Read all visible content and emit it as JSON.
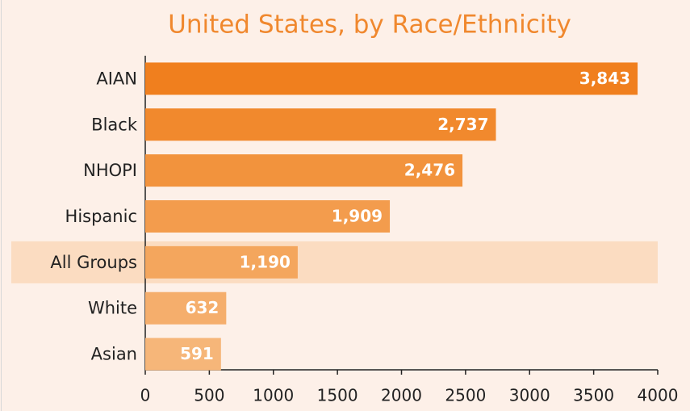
{
  "chart_data": {
    "type": "bar",
    "orientation": "horizontal",
    "title": "United States, by Race/Ethnicity",
    "categories": [
      "AIAN",
      "Black",
      "NHOPI",
      "Hispanic",
      "All Groups",
      "White",
      "Asian"
    ],
    "values": [
      3843,
      2737,
      2476,
      1909,
      1190,
      632,
      591
    ],
    "value_labels": [
      "3,843",
      "2,737",
      "2,476",
      "1,909",
      "1,190",
      "632",
      "591"
    ],
    "colors": [
      "#f07f1e",
      "#f1892d",
      "#f2933d",
      "#f39c4d",
      "#f4a65d",
      "#f5ae6c",
      "#f6b679"
    ],
    "highlight_category": "All Groups",
    "highlight_color": "#fbdcc1",
    "xlim": [
      0,
      4000
    ],
    "xticks": [
      0,
      500,
      1000,
      1500,
      2000,
      2500,
      3000,
      3500,
      4000
    ]
  }
}
